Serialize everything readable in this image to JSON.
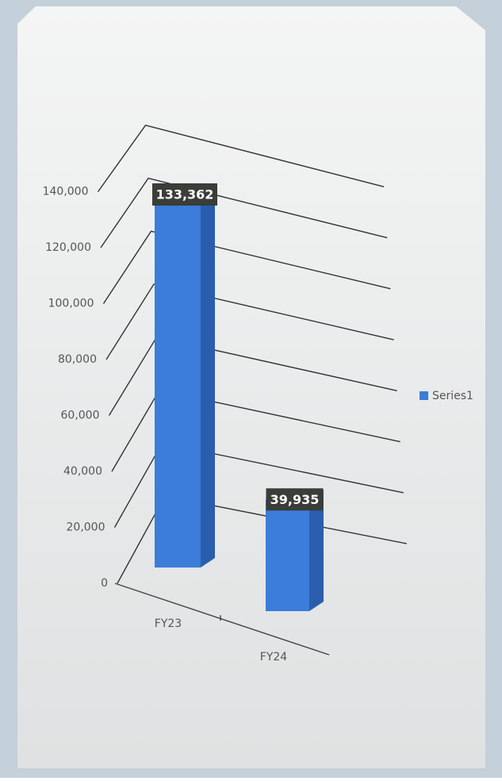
{
  "chart_data": {
    "type": "bar3d",
    "categories": [
      "FY23",
      "FY24"
    ],
    "series": [
      {
        "name": "Series1",
        "color": "#3b7dd8",
        "values": [
          133362,
          39935
        ],
        "value_labels": [
          "133,362",
          "39,935"
        ]
      }
    ],
    "ylim": [
      0,
      160000
    ],
    "yticks": [
      0,
      {
        "value": 20000,
        "label": "20,000"
      },
      {
        "value": 40000,
        "label": "40,000"
      },
      {
        "value": 60000,
        "label": "60,000"
      },
      {
        "value": 80000,
        "label": "80,000"
      },
      {
        "value": 100000,
        "label": "100,000"
      },
      {
        "value": 120000,
        "label": "120,000"
      },
      {
        "value": 140000,
        "label": "140,000"
      }
    ],
    "grid": true,
    "legend": "right"
  }
}
